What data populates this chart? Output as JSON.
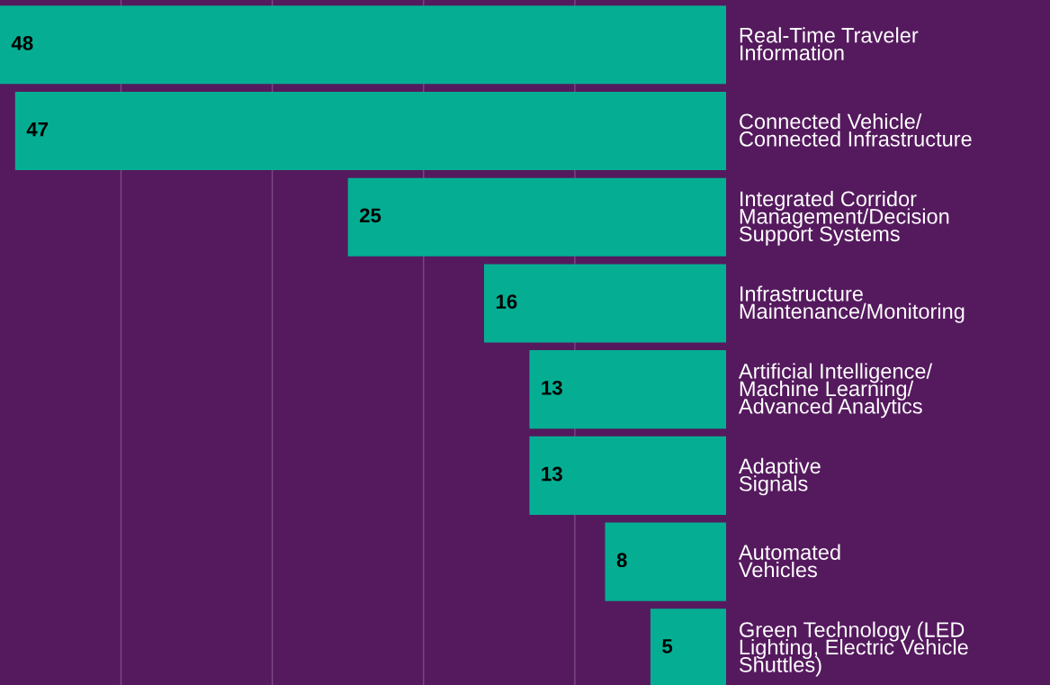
{
  "chart_data": {
    "type": "bar",
    "orientation": "horizontal",
    "categories": [
      "Real-Time Traveler\nInformation",
      "Connected Vehicle/\nConnected Infrastructure",
      "Integrated Corridor\nManagement/Decision\nSupport Systems",
      "Infrastructure\nMaintenance/Monitoring",
      "Artificial Intelligence/\nMachine Learning/\nAdvanced Analytics",
      "Adaptive\nSignals",
      "Automated\nVehicles",
      "Green Technology (LED\nLighting, Electric Vehicle\nShuttles)"
    ],
    "values": [
      48,
      47,
      25,
      16,
      13,
      13,
      8,
      5
    ],
    "color": "#05ae93",
    "xlim": [
      48,
      0
    ],
    "xticks": [
      {
        "value": 10,
        "label": null
      },
      {
        "value": 20,
        "label": null
      },
      {
        "value": 30,
        "label": null
      },
      {
        "value": 40,
        "label": null
      }
    ],
    "grid": "x",
    "tick_labels": "y",
    "data_labels": true
  }
}
